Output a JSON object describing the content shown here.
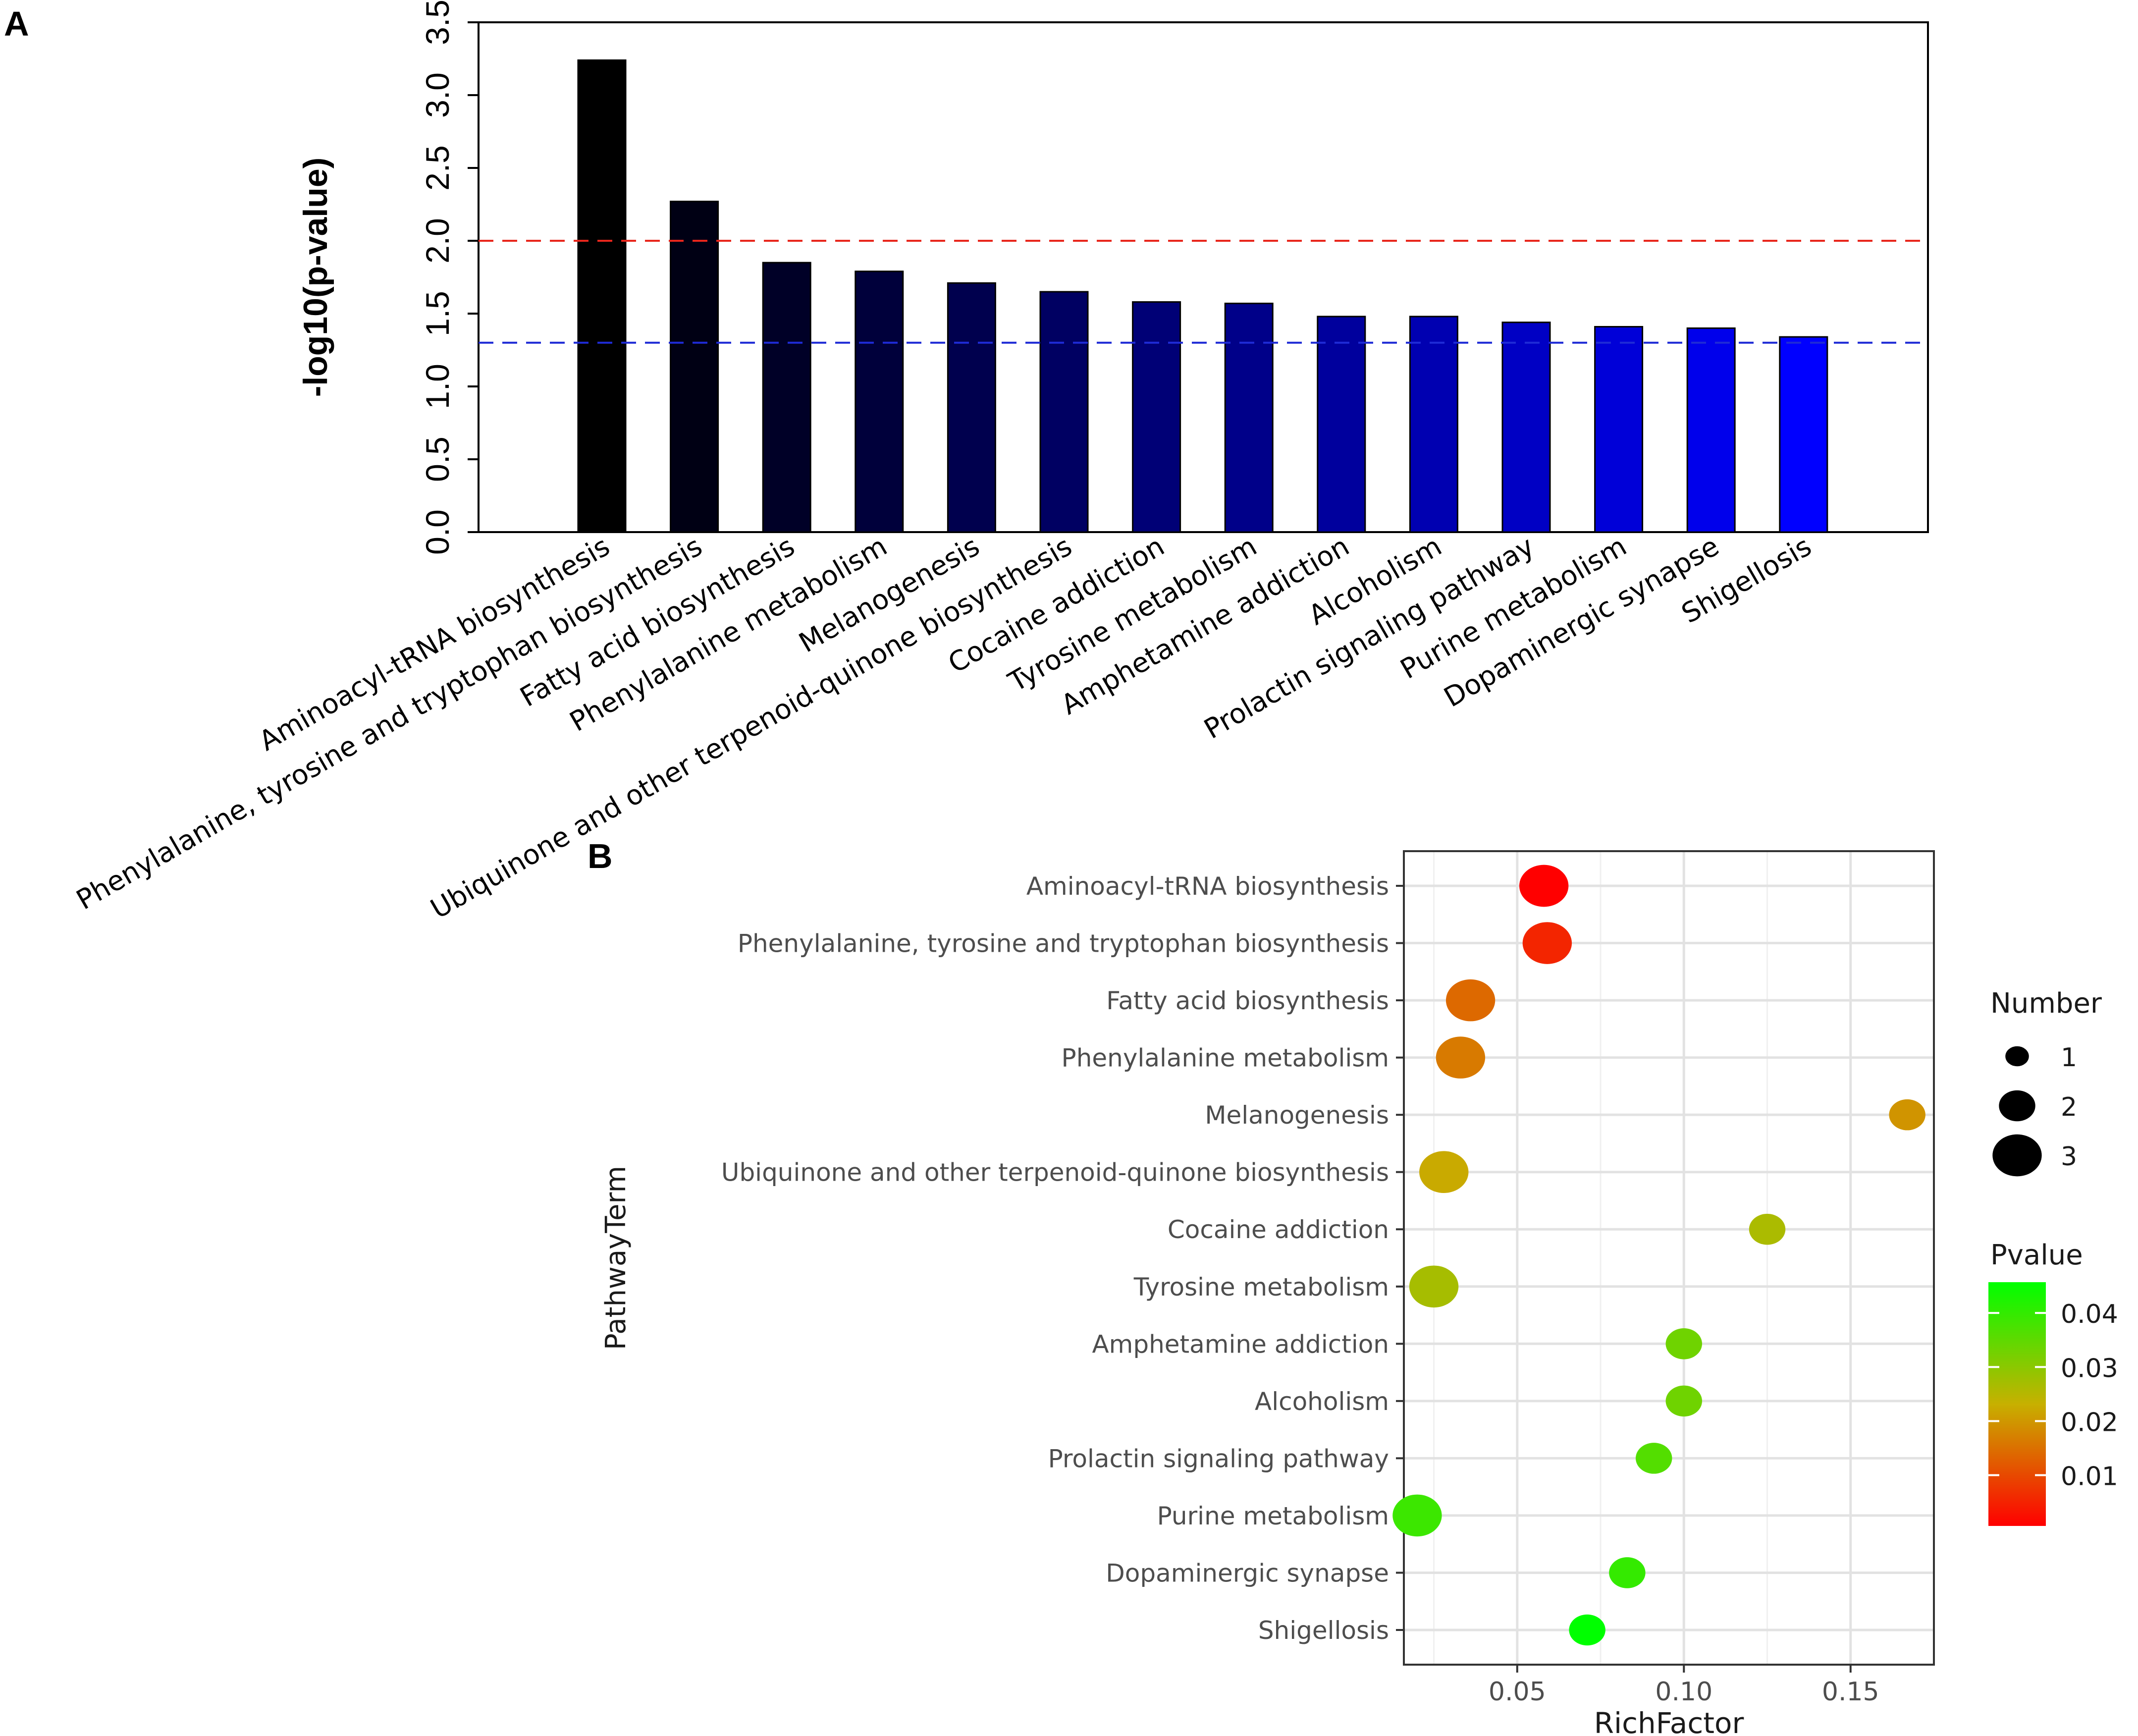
{
  "chart_data": [
    {
      "panel": "A",
      "type": "bar",
      "ylabel": "-log10(p-value)",
      "xlabel": "",
      "ylim": [
        0,
        3.5
      ],
      "yticks": [
        "0.0",
        "0.5",
        "1.0",
        "1.5",
        "2.0",
        "2.5",
        "3.0",
        "3.5"
      ],
      "categories": [
        "Aminoacyl-tRNA biosynthesis",
        "Phenylalanine, tyrosine and tryptophan biosynthesis",
        "Fatty acid biosynthesis",
        "Phenylalanine metabolism",
        "Melanogenesis",
        "Ubiquinone and other terpenoid-quinone biosynthesis",
        "Cocaine addiction",
        "Tyrosine metabolism",
        "Amphetamine addiction",
        "Alcoholism",
        "Prolactin signaling pathway",
        "Purine metabolism",
        "Dopaminergic synapse",
        "Shigellosis"
      ],
      "values": [
        3.24,
        2.27,
        1.85,
        1.79,
        1.71,
        1.65,
        1.58,
        1.57,
        1.48,
        1.48,
        1.44,
        1.41,
        1.4,
        1.34
      ],
      "reference_lines": [
        {
          "y": 2.0,
          "color": "#e8261c",
          "style": "dashed"
        },
        {
          "y": 1.3,
          "color": "#1f2bd6",
          "style": "dashed"
        }
      ],
      "bar_color_start": "#000000",
      "bar_color_end": "#0000ff"
    },
    {
      "panel": "B",
      "type": "scatter",
      "xlabel": "RichFactor",
      "ylabel": "PathwayTerm",
      "xlim": [
        0.016,
        0.175
      ],
      "xticks": [
        "0.05",
        "0.10",
        "0.15"
      ],
      "grid": true,
      "categories": [
        "Aminoacyl-tRNA biosynthesis",
        "Phenylalanine, tyrosine and tryptophan biosynthesis",
        "Fatty acid biosynthesis",
        "Phenylalanine metabolism",
        "Melanogenesis",
        "Ubiquinone and other terpenoid-quinone biosynthesis",
        "Cocaine addiction",
        "Tyrosine metabolism",
        "Amphetamine addiction",
        "Alcoholism",
        "Prolactin signaling pathway",
        "Purine metabolism",
        "Dopaminergic synapse",
        "Shigellosis"
      ],
      "richfactor": [
        0.058,
        0.059,
        0.036,
        0.033,
        0.167,
        0.028,
        0.125,
        0.025,
        0.1,
        0.1,
        0.091,
        0.02,
        0.083,
        0.071
      ],
      "number": [
        3,
        3,
        3,
        3,
        2,
        3,
        2,
        3,
        2,
        2,
        2,
        3,
        2,
        2
      ],
      "pvalue": [
        0.0006,
        0.0054,
        0.0141,
        0.0162,
        0.0195,
        0.0224,
        0.0263,
        0.0269,
        0.0331,
        0.0331,
        0.0363,
        0.0389,
        0.0398,
        0.0457
      ],
      "size_legend": {
        "title": "Number",
        "labels": [
          "1",
          "2",
          "3"
        ],
        "values": [
          1,
          2,
          3
        ]
      },
      "color_legend": {
        "title": "Pvalue",
        "labels": [
          "0.04",
          "0.03",
          "0.02",
          "0.01"
        ],
        "values": [
          0.04,
          0.03,
          0.02,
          0.01
        ],
        "range": [
          0.0006,
          0.0457
        ],
        "low_color": "#ff0000",
        "mid_color": "#c7b000",
        "high_color": "#00ff00"
      }
    }
  ],
  "labels": {
    "panel_a": "A",
    "panel_b": "B"
  }
}
